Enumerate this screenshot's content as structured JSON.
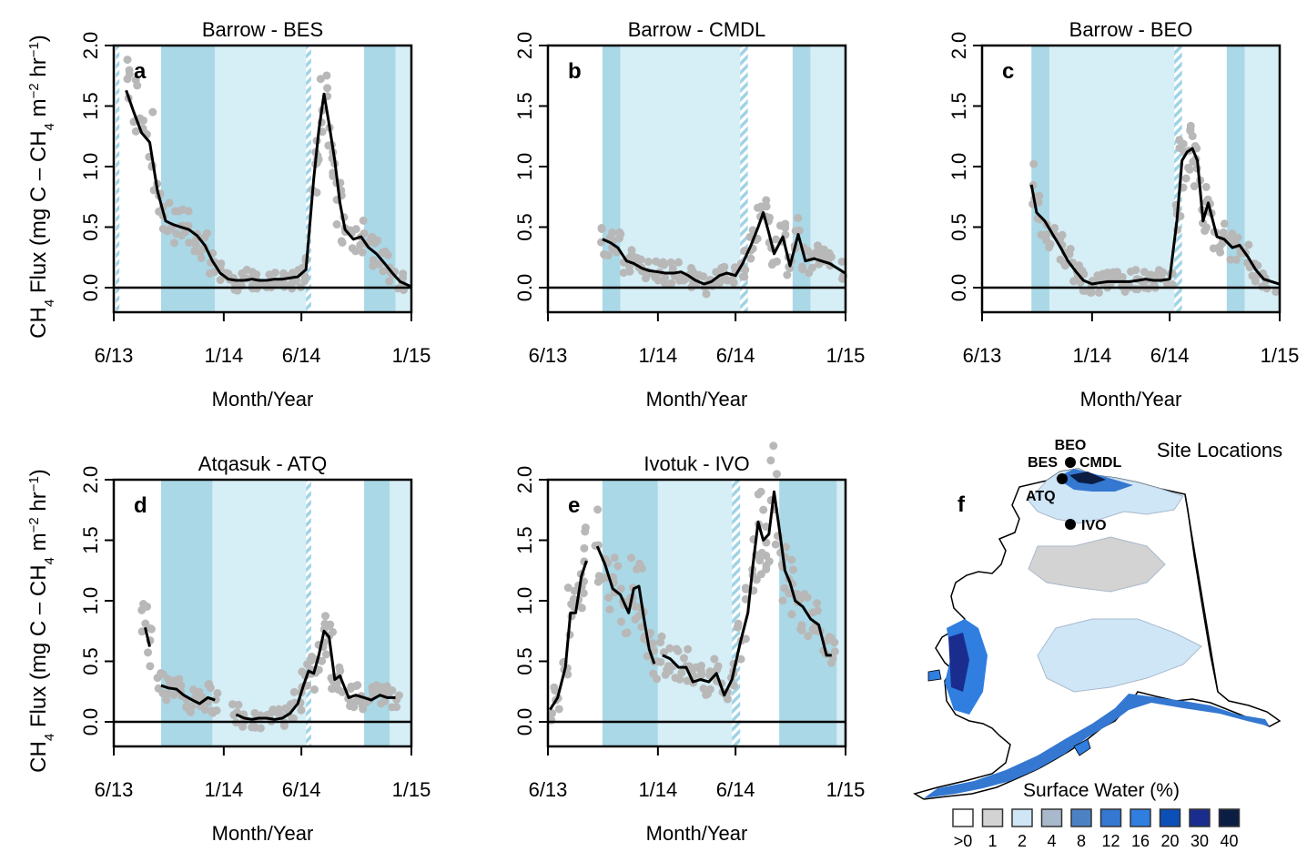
{
  "figure": {
    "ylabel_main": "CH",
    "ylabel_sub4": "4",
    "ylabel_rest": " Flux (mg C – CH",
    "ylabel_sub4b": "4",
    "ylabel_m": " m",
    "ylabel_exp1": "−2",
    "ylabel_hr": " hr",
    "ylabel_exp2": "−1",
    "ylabel_close": ")"
  },
  "chart_data": [
    {
      "type": "line",
      "panel": "a",
      "title": "Barrow - BES",
      "xlabel": "Month/Year",
      "xticks": [
        "6/13",
        "1/14",
        "6/14",
        "1/15"
      ],
      "ylim": [
        0,
        2.0
      ],
      "yticks": [
        "0.0",
        "0.5",
        "1.0",
        "1.5",
        "2.0"
      ],
      "x": [
        "2013-06-25",
        "2013-07-10",
        "2013-07-25",
        "2013-08-10",
        "2013-08-25",
        "2013-09-10",
        "2013-09-25",
        "2013-10-10",
        "2013-10-25",
        "2013-11-10",
        "2013-11-25",
        "2013-12-10",
        "2013-12-25",
        "2014-01-10",
        "2014-01-25",
        "2014-02-10",
        "2014-02-25",
        "2014-03-10",
        "2014-03-25",
        "2014-04-10",
        "2014-04-25",
        "2014-05-10",
        "2014-05-25",
        "2014-06-10",
        "2014-06-25",
        "2014-07-05",
        "2014-07-15",
        "2014-07-25",
        "2014-08-05",
        "2014-08-15",
        "2014-08-25",
        "2014-09-10",
        "2014-09-25",
        "2014-10-10",
        "2014-10-25",
        "2014-11-10",
        "2014-11-25",
        "2014-12-10",
        "2014-12-31"
      ],
      "series": [
        {
          "values": [
            1.63,
            1.45,
            1.28,
            1.2,
            0.8,
            0.55,
            0.52,
            0.5,
            0.48,
            0.43,
            0.35,
            0.22,
            0.12,
            0.07,
            0.06,
            0.06,
            0.07,
            0.06,
            0.06,
            0.07,
            0.07,
            0.08,
            0.09,
            0.15,
            0.9,
            1.3,
            1.6,
            1.35,
            1.05,
            0.7,
            0.48,
            0.4,
            0.42,
            0.33,
            0.28,
            0.2,
            0.12,
            0.05,
            0.01
          ]
        }
      ]
    },
    {
      "type": "line",
      "panel": "b",
      "title": "Barrow - CMDL",
      "xlabel": "Month/Year",
      "xticks": [
        "6/13",
        "1/14",
        "6/14",
        "1/15"
      ],
      "ylim": [
        0,
        2.0
      ],
      "yticks": [
        "0.0",
        "0.5",
        "1.0",
        "1.5",
        "2.0"
      ],
      "x": [
        "2013-09-15",
        "2013-10-01",
        "2013-10-15",
        "2013-11-01",
        "2013-11-15",
        "2013-12-01",
        "2013-12-15",
        "2014-01-01",
        "2014-01-15",
        "2014-02-01",
        "2014-02-15",
        "2014-03-01",
        "2014-03-15",
        "2014-04-01",
        "2014-04-15",
        "2014-05-01",
        "2014-05-15",
        "2014-06-01",
        "2014-06-15",
        "2014-07-01",
        "2014-07-15",
        "2014-07-25",
        "2014-08-05",
        "2014-08-15",
        "2014-09-01",
        "2014-09-15",
        "2014-10-01",
        "2014-10-15",
        "2014-11-01",
        "2014-11-15",
        "2014-12-01",
        "2014-12-31"
      ],
      "series": [
        {
          "values": [
            0.4,
            0.37,
            0.33,
            0.22,
            0.2,
            0.16,
            0.14,
            0.13,
            0.12,
            0.12,
            0.13,
            0.1,
            0.06,
            0.03,
            0.05,
            0.1,
            0.12,
            0.1,
            0.2,
            0.35,
            0.5,
            0.62,
            0.45,
            0.28,
            0.42,
            0.18,
            0.44,
            0.22,
            0.24,
            0.22,
            0.2,
            0.12
          ]
        }
      ]
    },
    {
      "type": "line",
      "panel": "c",
      "title": "Barrow - BEO",
      "xlabel": "Month/Year",
      "xticks": [
        "6/13",
        "1/14",
        "6/14",
        "1/15"
      ],
      "ylim": [
        0,
        2.0
      ],
      "yticks": [
        "0.0",
        "0.5",
        "1.0",
        "1.5",
        "2.0"
      ],
      "x": [
        "2013-09-05",
        "2013-09-15",
        "2013-10-01",
        "2013-10-15",
        "2013-11-01",
        "2013-11-15",
        "2013-12-01",
        "2013-12-15",
        "2014-01-01",
        "2014-01-15",
        "2014-02-01",
        "2014-02-15",
        "2014-03-01",
        "2014-03-15",
        "2014-04-01",
        "2014-04-15",
        "2014-05-01",
        "2014-05-15",
        "2014-06-01",
        "2014-06-15",
        "2014-06-25",
        "2014-07-05",
        "2014-07-15",
        "2014-07-25",
        "2014-08-05",
        "2014-08-15",
        "2014-09-01",
        "2014-09-15",
        "2014-10-01",
        "2014-10-15",
        "2014-11-01",
        "2014-11-15",
        "2014-12-01",
        "2014-12-31"
      ],
      "series": [
        {
          "values": [
            0.85,
            0.62,
            0.55,
            0.45,
            0.33,
            0.22,
            0.13,
            0.06,
            0.03,
            0.04,
            0.05,
            0.05,
            0.05,
            0.05,
            0.06,
            0.07,
            0.06,
            0.06,
            0.07,
            0.55,
            1.05,
            1.12,
            1.15,
            1.05,
            0.55,
            0.7,
            0.42,
            0.4,
            0.33,
            0.35,
            0.25,
            0.15,
            0.07,
            0.03
          ]
        }
      ]
    },
    {
      "type": "line",
      "panel": "d",
      "title": "Atqasuk - ATQ",
      "xlabel": "Month/Year",
      "xticks": [
        "6/13",
        "1/14",
        "6/14",
        "1/15"
      ],
      "ylim": [
        0,
        2.0
      ],
      "yticks": [
        "0.0",
        "0.5",
        "1.0",
        "1.5",
        "2.0"
      ],
      "segments": [
        {
          "x": [
            "2013-08-01",
            "2013-08-10"
          ],
          "values": [
            0.78,
            0.62
          ]
        },
        {
          "x": [
            "2013-09-01",
            "2013-09-15",
            "2013-10-01",
            "2013-10-15",
            "2013-11-01",
            "2013-11-15",
            "2013-12-01",
            "2013-12-15"
          ],
          "values": [
            0.3,
            0.28,
            0.27,
            0.22,
            0.18,
            0.15,
            0.2,
            0.18
          ]
        },
        {
          "x": [
            "2014-01-25",
            "2014-02-10",
            "2014-02-25",
            "2014-03-10",
            "2014-03-25",
            "2014-04-10",
            "2014-04-25",
            "2014-05-10",
            "2014-05-25",
            "2014-06-05",
            "2014-06-15",
            "2014-06-25",
            "2014-07-05",
            "2014-07-15",
            "2014-07-25",
            "2014-08-05",
            "2014-08-15",
            "2014-09-01",
            "2014-09-15",
            "2014-10-01",
            "2014-10-15",
            "2014-11-01",
            "2014-11-15",
            "2014-12-01"
          ],
          "values": [
            0.06,
            0.03,
            0.02,
            0.03,
            0.03,
            0.02,
            0.03,
            0.07,
            0.15,
            0.3,
            0.42,
            0.4,
            0.55,
            0.75,
            0.7,
            0.35,
            0.38,
            0.2,
            0.22,
            0.2,
            0.18,
            0.22,
            0.2,
            0.2
          ]
        }
      ]
    },
    {
      "type": "line",
      "panel": "e",
      "title": "Ivotuk - IVO",
      "xlabel": "Month/Year",
      "xticks": [
        "6/13",
        "1/14",
        "6/14",
        "1/15"
      ],
      "ylim": [
        0,
        2.0
      ],
      "yticks": [
        "0.0",
        "0.5",
        "1.0",
        "1.5",
        "2.0"
      ],
      "segments": [
        {
          "x": [
            "2013-06-05",
            "2013-06-20",
            "2013-07-05",
            "2013-07-15",
            "2013-07-25",
            "2013-08-05",
            "2013-08-15"
          ],
          "values": [
            0.1,
            0.2,
            0.45,
            0.9,
            0.9,
            1.2,
            1.33
          ]
        },
        {
          "x": [
            "2013-09-05",
            "2013-09-20",
            "2013-10-05",
            "2013-10-20",
            "2013-11-05",
            "2013-11-15",
            "2013-11-25",
            "2013-12-05",
            "2013-12-15",
            "2013-12-25"
          ],
          "values": [
            1.45,
            1.3,
            1.1,
            1.05,
            0.9,
            1.1,
            1.12,
            0.85,
            0.6,
            0.48
          ]
        },
        {
          "x": [
            "2014-01-10",
            "2014-01-25",
            "2014-02-10",
            "2014-02-25",
            "2014-03-10",
            "2014-03-25",
            "2014-04-10",
            "2014-04-25",
            "2014-05-10",
            "2014-05-25",
            "2014-06-10",
            "2014-06-25",
            "2014-07-05",
            "2014-07-15",
            "2014-07-25",
            "2014-08-05",
            "2014-08-15",
            "2014-08-25",
            "2014-09-05",
            "2014-09-15",
            "2014-09-25",
            "2014-10-10",
            "2014-10-25",
            "2014-11-10",
            "2014-11-25",
            "2014-12-05"
          ],
          "values": [
            0.55,
            0.52,
            0.45,
            0.45,
            0.33,
            0.35,
            0.33,
            0.4,
            0.22,
            0.35,
            0.65,
            0.9,
            1.3,
            1.65,
            1.5,
            1.55,
            1.9,
            1.6,
            1.25,
            1.15,
            1.0,
            0.95,
            0.85,
            0.8,
            0.55,
            0.55
          ]
        }
      ]
    }
  ],
  "map": {
    "title": "Site Locations",
    "panel_letter": "f",
    "sites": [
      "BEO",
      "BES",
      "CMDL",
      "ATQ",
      "IVO"
    ],
    "legend_title": "Surface Water (%)",
    "legend_labels": [
      ">0",
      "1",
      "2",
      "4",
      "8",
      "12",
      "16",
      "20",
      "30",
      "40"
    ],
    "legend_colors": [
      "#ffffff",
      "#d3d3d3",
      "#cfe6f7",
      "#a9b9cc",
      "#4c82c4",
      "#3478d1",
      "#2f7ee0",
      "#0d4fb8",
      "#1a2d8f",
      "#0c1d44"
    ]
  },
  "colors": {
    "dark_band": "#aad8e6",
    "light_band": "#d6eef5",
    "dots": "#b8b8b8",
    "line": "#000000"
  }
}
